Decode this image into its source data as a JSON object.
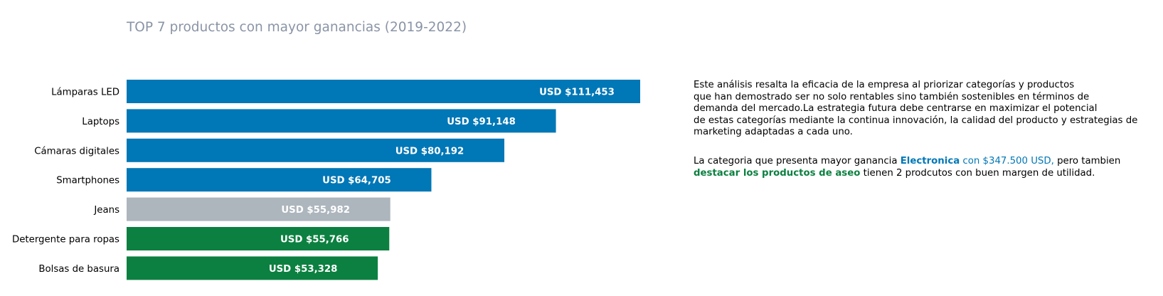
{
  "chart_data": {
    "type": "bar",
    "orientation": "horizontal",
    "title": "TOP 7 productos con mayor ganancias (2019-2022)",
    "xlabel": "",
    "ylabel": "",
    "grid": false,
    "xlim": [
      0,
      120000
    ],
    "categories": [
      "Lámparas LED",
      "Laptops",
      "Cámaras digitales",
      "Smartphones",
      "Jeans",
      "Detergente para ropas",
      "Bolsas de basura"
    ],
    "values": [
      111453,
      91148,
      80192,
      64705,
      55982,
      55766,
      53328
    ],
    "value_labels": [
      "USD $111,453",
      "USD $91,148",
      "USD $80,192",
      "USD $64,705",
      "USD $55,982",
      "USD $55,766",
      "USD $53,328"
    ],
    "bar_colors": [
      "#0077b6",
      "#0077b6",
      "#0077b6",
      "#0077b6",
      "#adb5bd",
      "#0c8040",
      "#0c8040"
    ]
  },
  "colors": {
    "title": "#8a94a6",
    "electronics_blue": "#0077b6",
    "cleaning_green": "#0c8040",
    "other_gray": "#adb5bd"
  },
  "notes": {
    "paragraph1": [
      "Este análisis resalta la eficacia de la empresa al priorizar categorías y productos",
      "que han demostrado ser no solo rentables sino también sostenibles en términos de",
      "demanda del mercado.La estrategia futura debe centrarse en maximizar el potencial",
      "de estas categorías mediante la continua innovación, la calidad del producto y estrategias de",
      "marketing adaptadas a cada uno."
    ],
    "p2_text1": "La categoria que presenta mayor ganancia ",
    "p2_highlight1": "Electronica",
    "p2_highlight2": " con $347.500 USD,",
    "p2_text2": " pero tambien",
    "p2_highlight3": "destacar los productos de aseo",
    "p2_text3": " tienen 2 prodcutos con buen margen de utilidad."
  }
}
